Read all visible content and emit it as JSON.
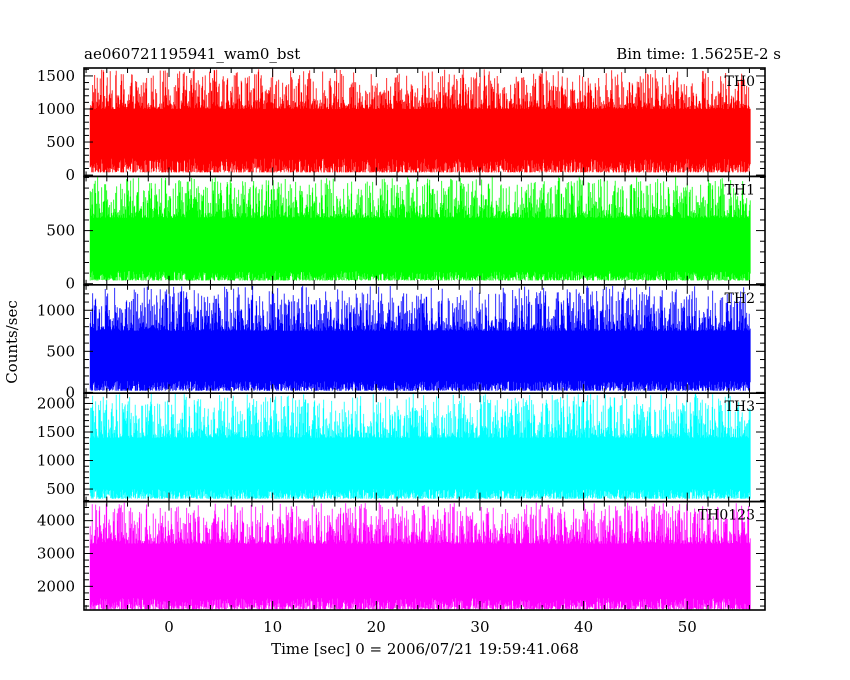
{
  "chart_data": {
    "type": "line",
    "title_left": "ae060721195941_wam0_bst",
    "title_right": "Bin time: 1.5625E-2 s",
    "xlabel": "Time [sec] 0 = 2006/07/21 19:59:41.068",
    "ylabel": "Counts/sec",
    "xlim": [
      -8.2,
      57.5
    ],
    "data_xrange": [
      -7.6,
      56.1
    ],
    "x_ticks": [
      0,
      10,
      20,
      30,
      40,
      50
    ],
    "x_minor_step": 2,
    "grid": false,
    "panels": [
      {
        "name": "TH0",
        "color": "#ff0000",
        "ylim": [
          -20,
          1620
        ],
        "y_ticks": [
          0,
          500,
          1000,
          1500
        ],
        "y_minor_step": 100,
        "envelope": {
          "min_floor": 40,
          "min_ceil": 250,
          "max_floor": 1000,
          "max_ceil": 1600
        }
      },
      {
        "name": "TH1",
        "color": "#00ff00",
        "ylim": [
          -10,
          1010
        ],
        "y_ticks": [
          0,
          500
        ],
        "y_minor_step": 100,
        "envelope": {
          "min_floor": 30,
          "min_ceil": 120,
          "max_floor": 620,
          "max_ceil": 1005
        }
      },
      {
        "name": "TH2",
        "color": "#0000ff",
        "ylim": [
          -10,
          1310
        ],
        "y_ticks": [
          0,
          500,
          1000
        ],
        "y_minor_step": 100,
        "envelope": {
          "min_floor": 20,
          "min_ceil": 140,
          "max_floor": 750,
          "max_ceil": 1300
        }
      },
      {
        "name": "TH3",
        "color": "#00ffff",
        "ylim": [
          280,
          2180
        ],
        "y_ticks": [
          500,
          1000,
          1500,
          2000
        ],
        "y_minor_step": 100,
        "envelope": {
          "min_floor": 330,
          "min_ceil": 500,
          "max_floor": 1400,
          "max_ceil": 2170
        }
      },
      {
        "name": "TH0123",
        "color": "#ff00ff",
        "ylim": [
          1280,
          4580
        ],
        "y_ticks": [
          2000,
          3000,
          4000
        ],
        "y_minor_step": 200,
        "envelope": {
          "min_floor": 1300,
          "min_ceil": 1650,
          "max_floor": 3300,
          "max_ceil": 4550
        }
      }
    ]
  }
}
